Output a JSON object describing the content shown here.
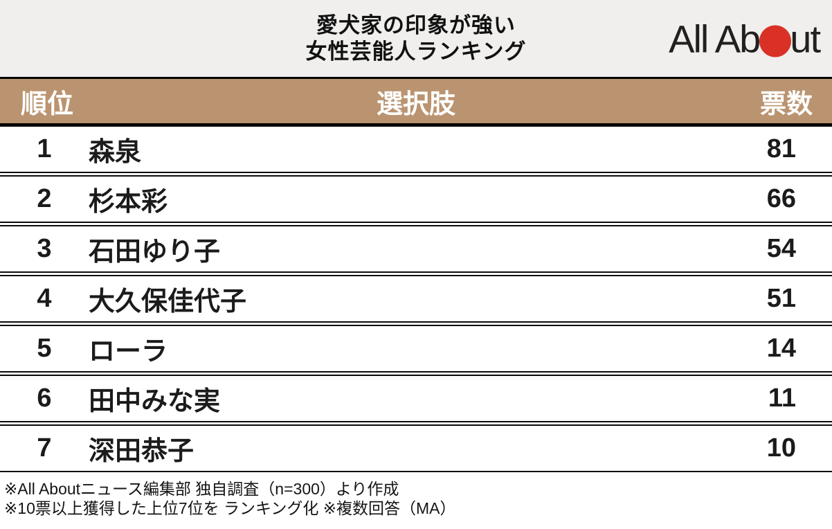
{
  "header": {
    "title_line1": "愛犬家の印象が強い",
    "title_line2": "女性芸能人ランキング",
    "logo": {
      "text_before": "All Ab",
      "text_after": "ut",
      "dot_color": "#da3126"
    }
  },
  "colors": {
    "table_header_bg": "#ba9470",
    "top_band_bg": "#f0efed",
    "logo_dot_red": "#da3126"
  },
  "chart_data": {
    "type": "table",
    "title": "愛犬家の印象が強い女性芸能人ランキング",
    "columns": [
      "順位",
      "選択肢",
      "票数"
    ],
    "rows": [
      [
        1,
        "森泉",
        81
      ],
      [
        2,
        "杉本彩",
        66
      ],
      [
        3,
        "石田ゆり子",
        54
      ],
      [
        4,
        "大久保佳代子",
        51
      ],
      [
        5,
        "ローラ",
        14
      ],
      [
        6,
        "田中みな実",
        11
      ],
      [
        7,
        "深田恭子",
        10
      ]
    ],
    "notes": [
      "※All Aboutニュース編集部 独自調査（n=300）より作成",
      "※10票以上獲得した上位7位を ランキング化 ※複数回答（MA）"
    ]
  },
  "footnotes": [
    "※All Aboutニュース編集部 独自調査（n=300）より作成",
    "※10票以上獲得した上位7位を ランキング化 ※複数回答（MA）"
  ]
}
